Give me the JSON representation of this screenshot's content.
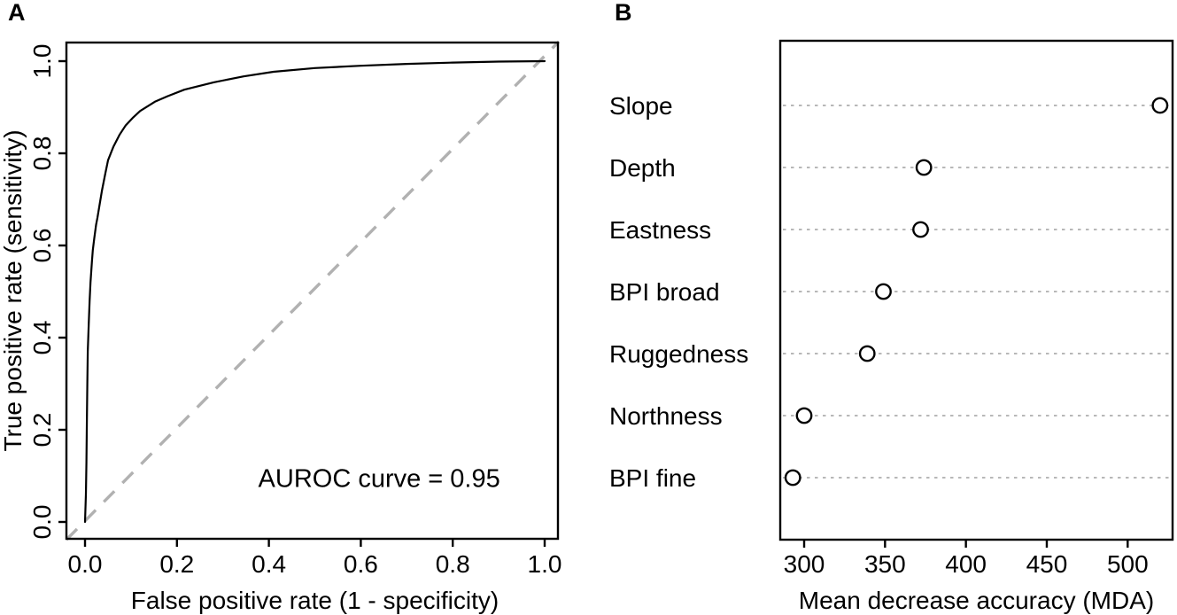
{
  "panels": {
    "a_label": "A",
    "b_label": "B"
  },
  "colors": {
    "background": "#ffffff",
    "frame": "#000000",
    "text": "#000000",
    "roc_curve": "#000000",
    "diagonal_reference": "#b1b1b1",
    "leader_dots": "#b8b8b8",
    "marker_stroke": "#000000",
    "marker_fill": "#ffffff"
  },
  "chart_data": [
    {
      "id": "roc",
      "panel_label": "A",
      "type": "line",
      "title": "",
      "xlabel": "False positive rate (1 - specificity)",
      "ylabel": "True positive rate (sensitivity)",
      "annotation": {
        "text": "AUROC curve = 0.95",
        "x": 0.64,
        "y": 0.095
      },
      "auroc": 0.95,
      "xlim": [
        0,
        1
      ],
      "ylim": [
        0,
        1
      ],
      "xticks": [
        0.0,
        0.2,
        0.4,
        0.6,
        0.8,
        1.0
      ],
      "xtick_labels": [
        "0.0",
        "0.2",
        "0.4",
        "0.6",
        "0.8",
        "1.0"
      ],
      "yticks": [
        0.0,
        0.2,
        0.4,
        0.6,
        0.8,
        1.0
      ],
      "ytick_labels": [
        "0.0",
        "0.2",
        "0.4",
        "0.6",
        "0.8",
        "1.0"
      ],
      "diagonal_reference_line": true,
      "grid": false,
      "series": [
        {
          "name": "ROC curve",
          "points": [
            [
              0.0,
              0.0
            ],
            [
              0.002,
              0.06
            ],
            [
              0.003,
              0.13
            ],
            [
              0.004,
              0.22
            ],
            [
              0.005,
              0.3
            ],
            [
              0.006,
              0.37
            ],
            [
              0.008,
              0.43
            ],
            [
              0.01,
              0.48
            ],
            [
              0.012,
              0.52
            ],
            [
              0.015,
              0.565
            ],
            [
              0.017,
              0.59
            ],
            [
              0.02,
              0.615
            ],
            [
              0.024,
              0.645
            ],
            [
              0.027,
              0.66
            ],
            [
              0.032,
              0.69
            ],
            [
              0.037,
              0.72
            ],
            [
              0.044,
              0.755
            ],
            [
              0.05,
              0.785
            ],
            [
              0.062,
              0.815
            ],
            [
              0.075,
              0.84
            ],
            [
              0.088,
              0.86
            ],
            [
              0.105,
              0.878
            ],
            [
              0.12,
              0.892
            ],
            [
              0.152,
              0.912
            ],
            [
              0.18,
              0.924
            ],
            [
              0.216,
              0.938
            ],
            [
              0.28,
              0.954
            ],
            [
              0.345,
              0.967
            ],
            [
              0.41,
              0.977
            ],
            [
              0.5,
              0.985
            ],
            [
              0.6,
              0.99
            ],
            [
              0.7,
              0.994
            ],
            [
              0.8,
              0.997
            ],
            [
              0.9,
              0.999
            ],
            [
              1.0,
              1.0
            ]
          ]
        }
      ]
    },
    {
      "id": "mda",
      "panel_label": "B",
      "type": "scatter",
      "title": "",
      "xlabel": "Mean decrease accuracy (MDA)",
      "ylabel": "",
      "categories": [
        "Slope",
        "Depth",
        "Eastness",
        "BPI broad",
        "Ruggedness",
        "Northness",
        "BPI fine"
      ],
      "values": [
        520,
        374,
        372,
        349,
        339,
        300,
        293
      ],
      "xlim": [
        286,
        528
      ],
      "xticks": [
        300,
        350,
        400,
        450,
        500
      ],
      "xtick_labels": [
        "300",
        "350",
        "400",
        "450",
        "500"
      ],
      "grid": "horizontal-dotted",
      "marker": "open-circle",
      "legend": null
    }
  ]
}
